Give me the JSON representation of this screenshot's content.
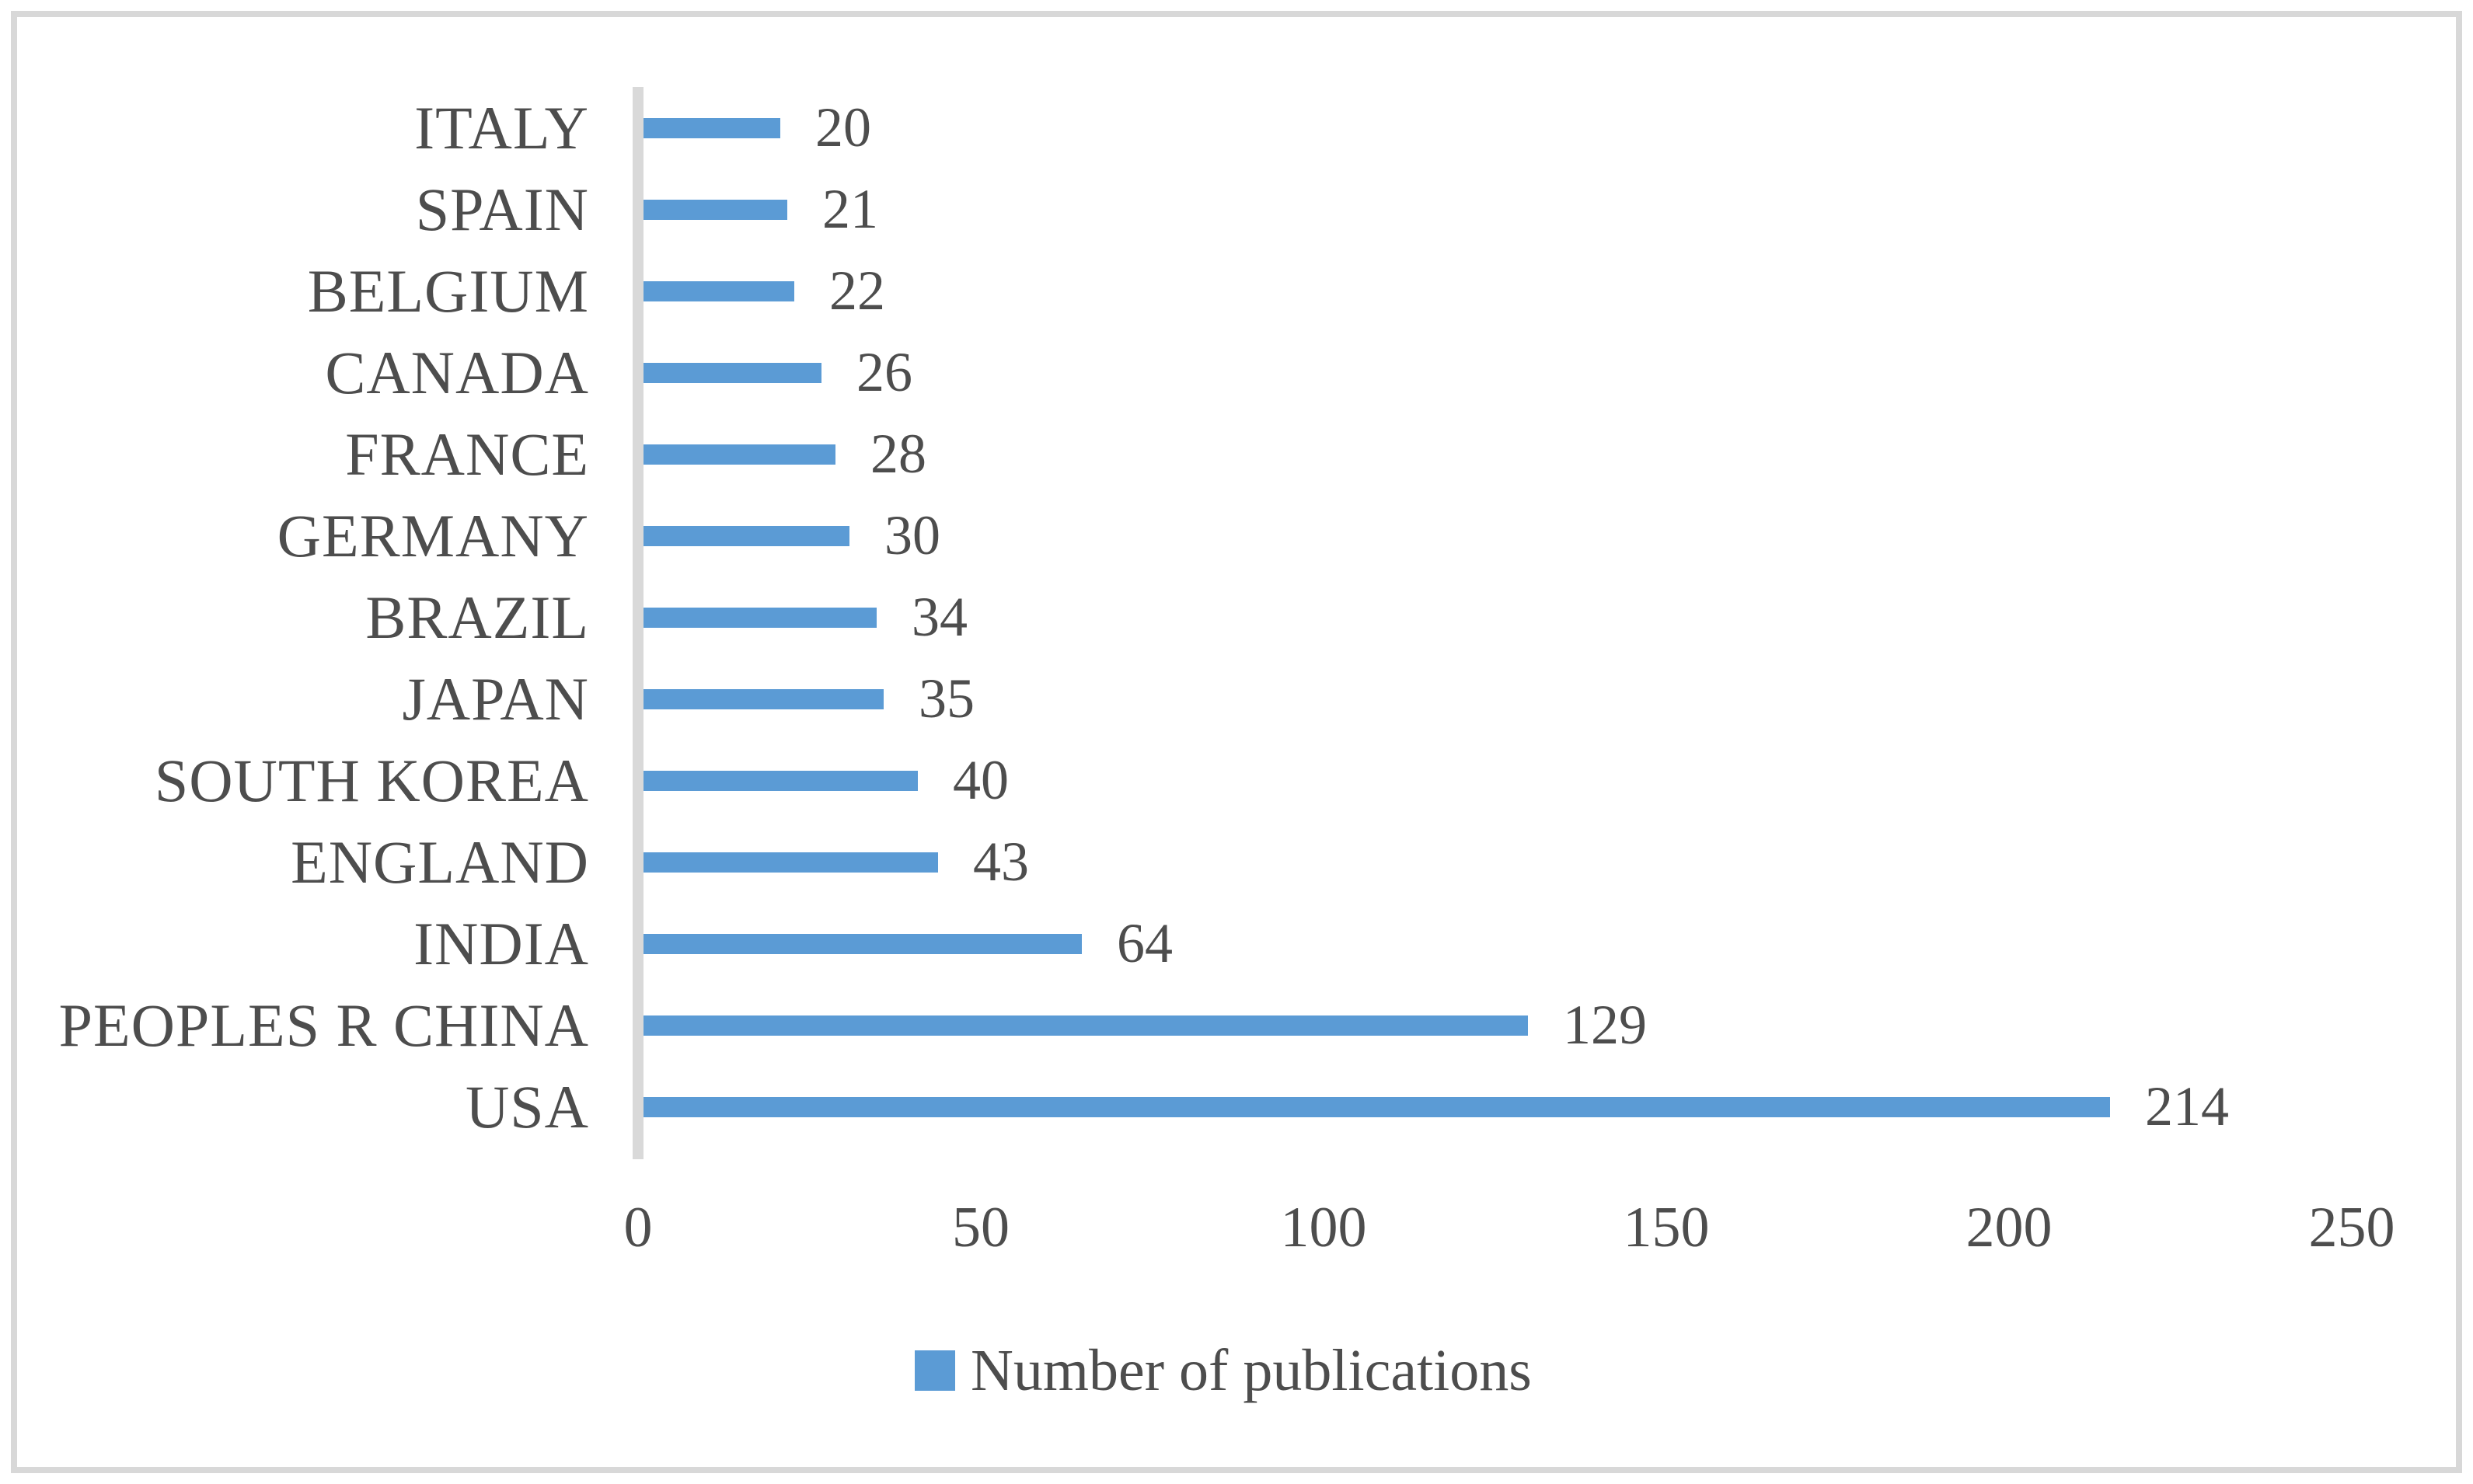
{
  "chart_data": {
    "type": "bar",
    "orientation": "horizontal",
    "title": "",
    "categories": [
      "ITALY",
      "SPAIN",
      "BELGIUM",
      "CANADA",
      "FRANCE",
      "GERMANY",
      "BRAZIL",
      "JAPAN",
      "SOUTH KOREA",
      "ENGLAND",
      "INDIA",
      "PEOPLES R CHINA",
      "USA"
    ],
    "values": [
      20,
      21,
      22,
      26,
      28,
      30,
      34,
      35,
      40,
      43,
      64,
      129,
      214
    ],
    "series": [
      {
        "name": "Number of publications",
        "values": [
          20,
          21,
          22,
          26,
          28,
          30,
          34,
          35,
          40,
          43,
          64,
          129,
          214
        ]
      }
    ],
    "xlabel": "",
    "ylabel": "",
    "xlim": [
      0,
      250
    ],
    "x_ticks": [
      "0",
      "50",
      "100",
      "150",
      "200",
      "250"
    ],
    "grid": "off",
    "data_labels": "on",
    "legend_position": "bottom",
    "bar_color": "#5B9BD5",
    "axis_line_color": "#D9D9D9",
    "text_color": "#4D4D4D",
    "border_color": "#D8D8D8"
  },
  "legend": {
    "label": "Number of publications"
  }
}
